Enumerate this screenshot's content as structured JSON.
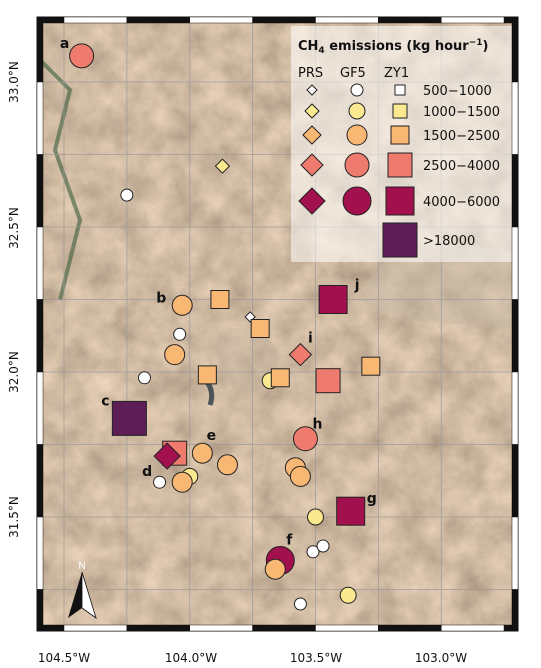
{
  "legend": {
    "title_prefix": "CH",
    "title_sub": "4",
    "title_mid": " emissions (kg hour",
    "title_sup": "−1",
    "title_suffix": ")",
    "col_headers": [
      "PRS",
      "GF5",
      "ZY1"
    ],
    "ranges": [
      "500−1000",
      "1000−1500",
      "1500−2500",
      "2500−4000",
      "4000−6000",
      ">18000"
    ],
    "colors": [
      "#ffffff",
      "#fbe98f",
      "#f9b774",
      "#ef7b6e",
      "#a3104e",
      "#5e1d57"
    ]
  },
  "axes": {
    "x_ticks": [
      "104.5°W",
      "104.0°W",
      "103.5°W",
      "103.0°W"
    ],
    "y_ticks": [
      "33.0°N",
      "32.5°N",
      "32.0°N",
      "31.5°N"
    ]
  },
  "north_arrow": {
    "label": "N",
    "icon": "north-arrow-icon"
  },
  "site_labels": [
    "a",
    "b",
    "c",
    "d",
    "e",
    "f",
    "g",
    "h",
    "i",
    "j"
  ],
  "detections": [
    {
      "site": "a",
      "sensor": "GF5",
      "class": 4,
      "lon": -104.43,
      "lat": 33.09
    },
    {
      "site": "",
      "sensor": "GF5",
      "class": 1,
      "lon": -104.25,
      "lat": 32.61
    },
    {
      "site": "",
      "sensor": "PRS",
      "class": 2,
      "lon": -103.87,
      "lat": 32.71
    },
    {
      "site": "b",
      "sensor": "GF5",
      "class": 3,
      "lon": -104.03,
      "lat": 32.23
    },
    {
      "site": "",
      "sensor": "ZY1",
      "class": 3,
      "lon": -103.88,
      "lat": 32.25
    },
    {
      "site": "",
      "sensor": "PRS",
      "class": 1,
      "lon": -103.76,
      "lat": 32.19
    },
    {
      "site": "",
      "sensor": "ZY1",
      "class": 3,
      "lon": -103.72,
      "lat": 32.15
    },
    {
      "site": "j",
      "sensor": "ZY1",
      "class": 5,
      "lon": -103.43,
      "lat": 32.25
    },
    {
      "site": "",
      "sensor": "GF5",
      "class": 1,
      "lon": -104.04,
      "lat": 32.13
    },
    {
      "site": "",
      "sensor": "GF5",
      "class": 3,
      "lon": -104.06,
      "lat": 32.06
    },
    {
      "site": "i",
      "sensor": "PRS",
      "class": 4,
      "lon": -103.56,
      "lat": 32.06
    },
    {
      "site": "",
      "sensor": "GF5",
      "class": 1,
      "lon": -104.18,
      "lat": 31.98
    },
    {
      "site": "",
      "sensor": "ZY1",
      "class": 3,
      "lon": -103.93,
      "lat": 31.99
    },
    {
      "site": "",
      "sensor": "GF5",
      "class": 2,
      "lon": -103.68,
      "lat": 31.97
    },
    {
      "site": "",
      "sensor": "ZY1",
      "class": 3,
      "lon": -103.64,
      "lat": 31.98
    },
    {
      "site": "",
      "sensor": "ZY1",
      "class": 4,
      "lon": -103.45,
      "lat": 31.97
    },
    {
      "site": "",
      "sensor": "ZY1",
      "class": 3,
      "lon": -103.28,
      "lat": 32.02
    },
    {
      "site": "c",
      "sensor": "ZY1",
      "class": 6,
      "lon": -104.24,
      "lat": 31.84
    },
    {
      "site": "h",
      "sensor": "GF5",
      "class": 4,
      "lon": -103.54,
      "lat": 31.77
    },
    {
      "site": "",
      "sensor": "ZY1",
      "class": 4,
      "lon": -104.06,
      "lat": 31.72
    },
    {
      "site": "d",
      "sensor": "PRS",
      "class": 5,
      "lon": -104.09,
      "lat": 31.71
    },
    {
      "site": "e",
      "sensor": "GF5",
      "class": 3,
      "lon": -103.95,
      "lat": 31.72
    },
    {
      "site": "",
      "sensor": "GF5",
      "class": 3,
      "lon": -103.85,
      "lat": 31.68
    },
    {
      "site": "",
      "sensor": "GF5",
      "class": 1,
      "lon": -104.12,
      "lat": 31.62
    },
    {
      "site": "",
      "sensor": "GF5",
      "class": 2,
      "lon": -104.0,
      "lat": 31.64
    },
    {
      "site": "",
      "sensor": "GF5",
      "class": 3,
      "lon": -104.03,
      "lat": 31.62
    },
    {
      "site": "",
      "sensor": "GF5",
      "class": 3,
      "lon": -103.58,
      "lat": 31.67
    },
    {
      "site": "",
      "sensor": "GF5",
      "class": 3,
      "lon": -103.56,
      "lat": 31.64
    },
    {
      "site": "g",
      "sensor": "ZY1",
      "class": 5,
      "lon": -103.36,
      "lat": 31.52
    },
    {
      "site": "",
      "sensor": "GF5",
      "class": 2,
      "lon": -103.5,
      "lat": 31.5
    },
    {
      "site": "f",
      "sensor": "GF5",
      "class": 5,
      "lon": -103.64,
      "lat": 31.35
    },
    {
      "site": "",
      "sensor": "GF5",
      "class": 3,
      "lon": -103.66,
      "lat": 31.32
    },
    {
      "site": "",
      "sensor": "GF5",
      "class": 1,
      "lon": -103.51,
      "lat": 31.38
    },
    {
      "site": "",
      "sensor": "GF5",
      "class": 1,
      "lon": -103.47,
      "lat": 31.4
    },
    {
      "site": "",
      "sensor": "GF5",
      "class": 2,
      "lon": -103.37,
      "lat": 31.23
    },
    {
      "site": "",
      "sensor": "GF5",
      "class": 1,
      "lon": -103.56,
      "lat": 31.2
    }
  ]
}
